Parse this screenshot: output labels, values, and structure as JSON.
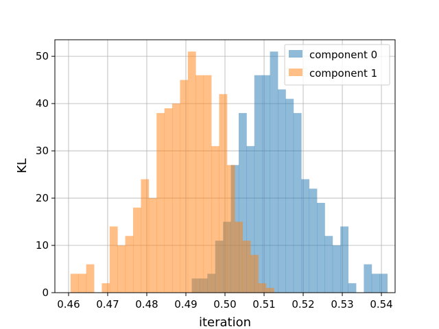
{
  "chart_data": {
    "type": "bar",
    "subtype": "overlaid-histogram",
    "xlabel": "iteration",
    "ylabel": "KL",
    "xlim": [
      0.4565,
      0.5435
    ],
    "ylim": [
      0,
      53.5
    ],
    "xticks": [
      "0.46",
      "0.47",
      "0.48",
      "0.49",
      "0.50",
      "0.51",
      "0.52",
      "0.53",
      "0.54"
    ],
    "yticks": [
      "0",
      "10",
      "20",
      "30",
      "40",
      "50"
    ],
    "grid": true,
    "legend_position": "top-right",
    "bin_width": 0.002,
    "series": [
      {
        "name": "component 0",
        "color": "#1f77b4",
        "alpha": 0.5,
        "bin_start": 0.4915,
        "counts": [
          3,
          3,
          4,
          11,
          15,
          27,
          38,
          31,
          46,
          46,
          51,
          43,
          41,
          38,
          24,
          22,
          19,
          12,
          10,
          14,
          2,
          0,
          6,
          4,
          4
        ]
      },
      {
        "name": "component 1",
        "color": "#ff7f0e",
        "alpha": 0.5,
        "bin_start": 0.4605,
        "counts": [
          4,
          4,
          6,
          0,
          2,
          14,
          10,
          12,
          18,
          24,
          20,
          38,
          39,
          40,
          45,
          51,
          46,
          46,
          31,
          42,
          27,
          15,
          11,
          8,
          2,
          1
        ]
      }
    ]
  }
}
